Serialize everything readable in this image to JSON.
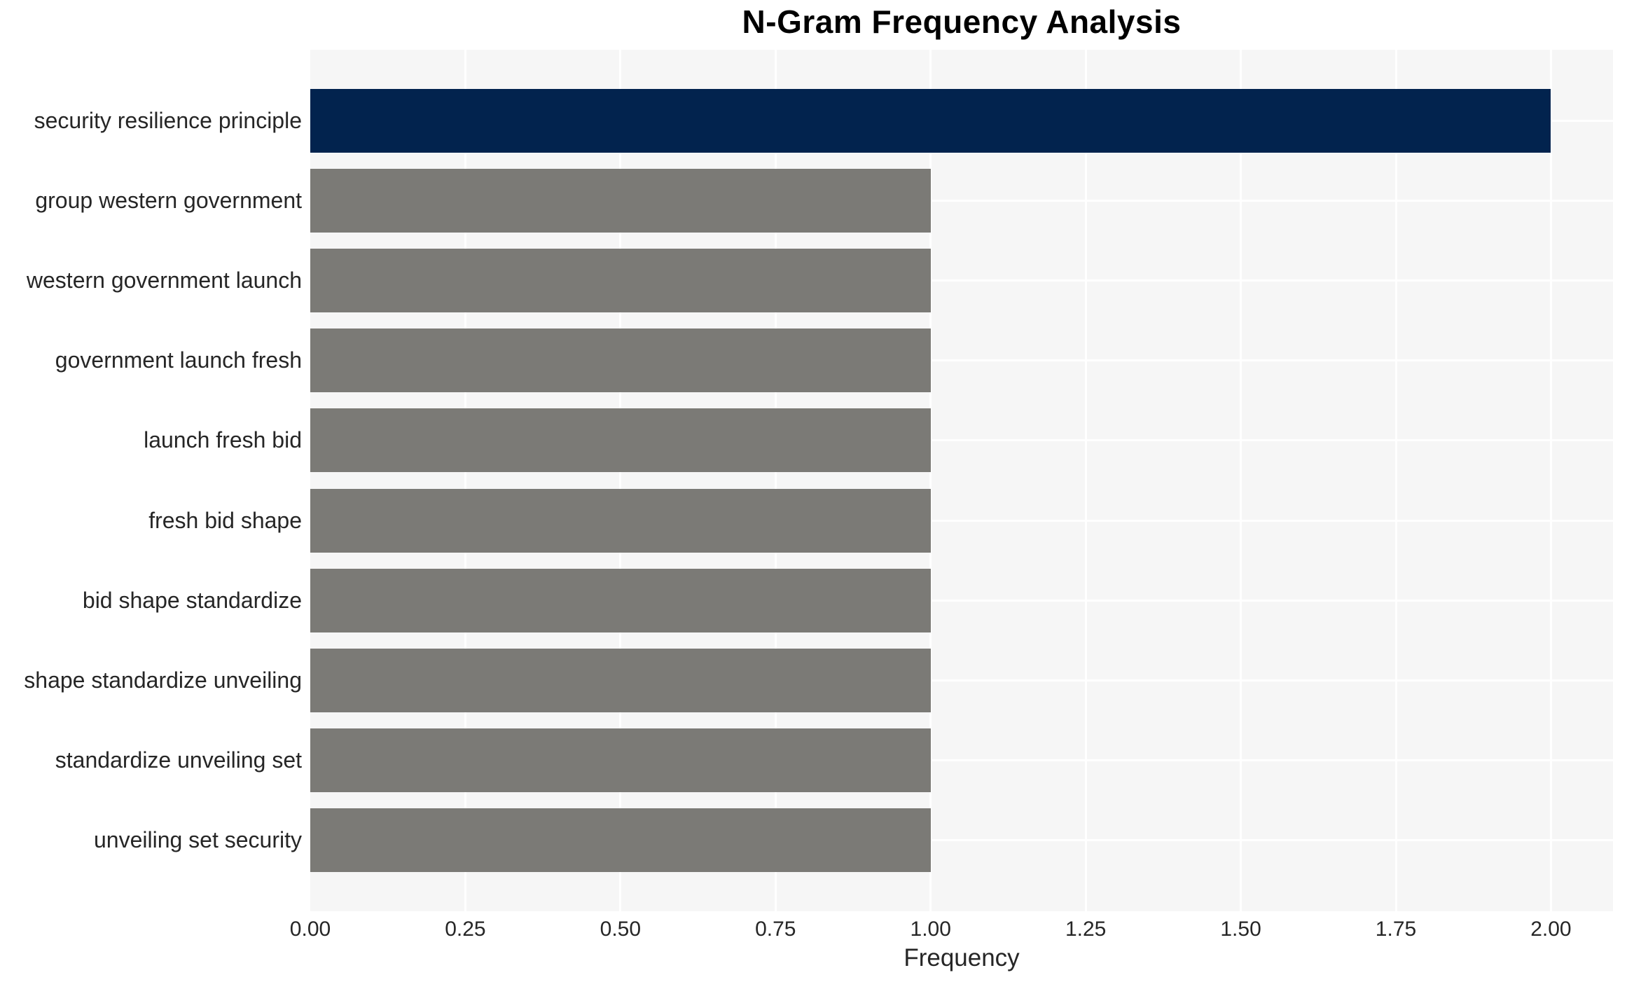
{
  "chart_data": {
    "type": "bar",
    "orientation": "horizontal",
    "title": "N-Gram Frequency Analysis",
    "xlabel": "Frequency",
    "ylabel": "",
    "categories": [
      "security resilience principle",
      "group western government",
      "western government launch",
      "government launch fresh",
      "launch fresh bid",
      "fresh bid shape",
      "bid shape standardize",
      "shape standardize unveiling",
      "standardize unveiling set",
      "unveiling set security"
    ],
    "values": [
      2,
      1,
      1,
      1,
      1,
      1,
      1,
      1,
      1,
      1
    ],
    "highlight_index": 0,
    "xlim": [
      0,
      2.1
    ],
    "xticks": [
      {
        "value": 0.0,
        "label": "0.00"
      },
      {
        "value": 0.25,
        "label": "0.25"
      },
      {
        "value": 0.5,
        "label": "0.50"
      },
      {
        "value": 0.75,
        "label": "0.75"
      },
      {
        "value": 1.0,
        "label": "1.00"
      },
      {
        "value": 1.25,
        "label": "1.25"
      },
      {
        "value": 1.5,
        "label": "1.50"
      },
      {
        "value": 1.75,
        "label": "1.75"
      },
      {
        "value": 2.0,
        "label": "2.00"
      }
    ],
    "grid": true,
    "legend": false,
    "colors": {
      "bar_highlight": "#02234e",
      "bar_default": "#7b7a76",
      "plot_background": "#f6f6f6",
      "gridline": "#ffffff",
      "tick_text": "#262626",
      "title_text": "#000000"
    }
  }
}
